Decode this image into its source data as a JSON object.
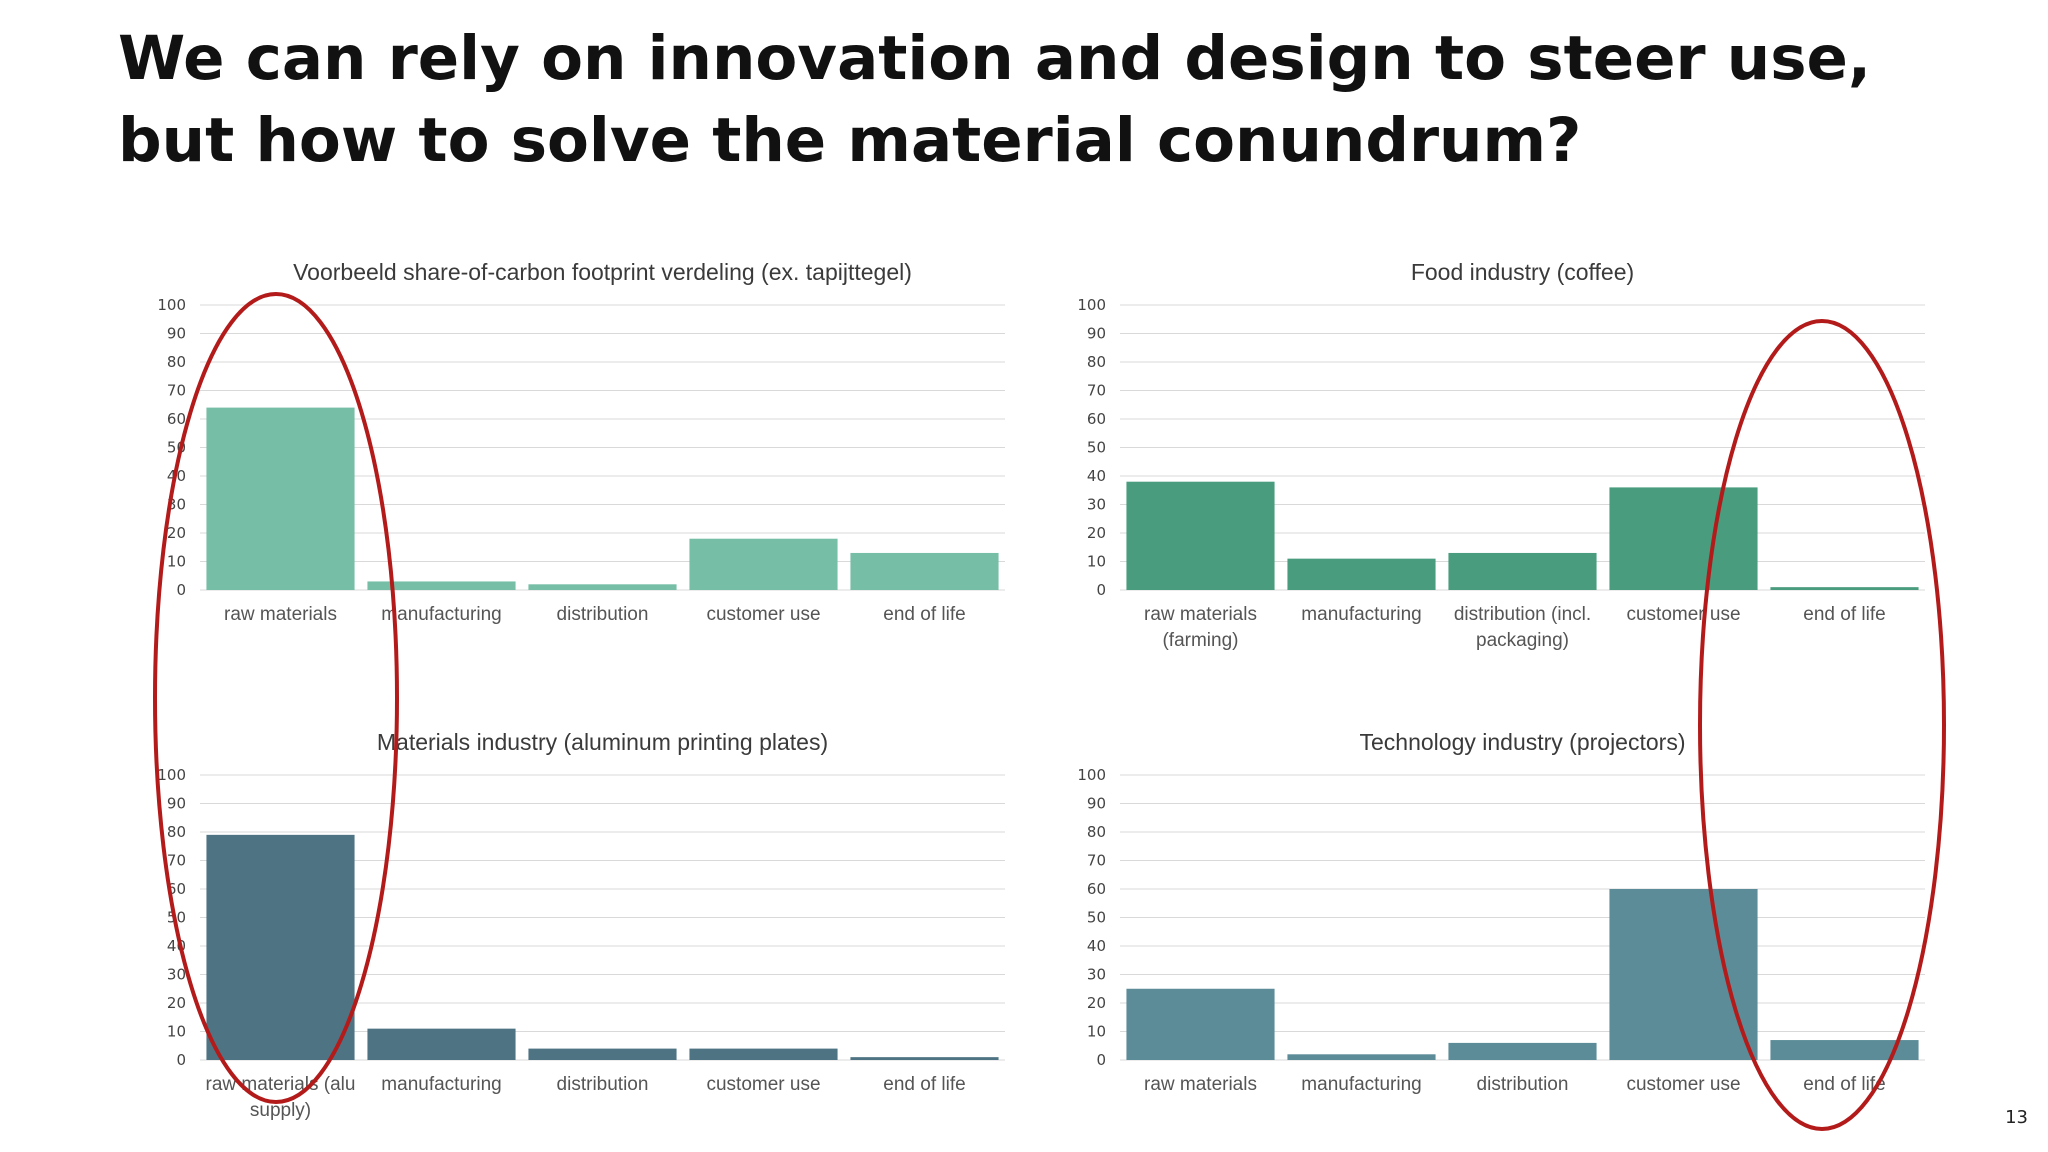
{
  "slide": {
    "title": "We can rely on innovation and design to steer use, but how to solve the material conundrum?",
    "page_number": "13"
  },
  "colors": {
    "chart_0_bar": "#76bea6",
    "chart_1_bar": "#4a9c7e",
    "chart_2_bar": "#4e7483",
    "chart_3_bar": "#5c8c98",
    "highlight": "#b31b1b"
  },
  "highlights": [
    {
      "label": "circle around raw materials bars",
      "target_category": "raw materials"
    },
    {
      "label": "circle around end of life bars",
      "target_category": "end of life"
    }
  ],
  "chart_data": [
    {
      "type": "bar",
      "title": "Voorbeeld share-of-carbon footprint verdeling (ex. tapijttegel)",
      "categories": [
        [
          "raw materials"
        ],
        [
          "manufacturing"
        ],
        [
          "distribution"
        ],
        [
          "customer use"
        ],
        [
          "end of life"
        ]
      ],
      "values": [
        64,
        3,
        2,
        18,
        13
      ],
      "ylim": [
        0,
        100
      ],
      "yticks": [
        0,
        10,
        20,
        30,
        40,
        50,
        60,
        70,
        80,
        90,
        100
      ],
      "grid": true,
      "color": "#76bea6"
    },
    {
      "type": "bar",
      "title": "Food industry (coffee)",
      "categories": [
        [
          "raw materials",
          "(farming)"
        ],
        [
          "manufacturing"
        ],
        [
          "distribution (incl.",
          "packaging)"
        ],
        [
          "customer use"
        ],
        [
          "end of life"
        ]
      ],
      "values": [
        38,
        11,
        13,
        36,
        1
      ],
      "ylim": [
        0,
        100
      ],
      "yticks": [
        0,
        10,
        20,
        30,
        40,
        50,
        60,
        70,
        80,
        90,
        100
      ],
      "grid": true,
      "color": "#4a9c7e"
    },
    {
      "type": "bar",
      "title": "Materials industry (aluminum printing plates)",
      "categories": [
        [
          "raw materials (alu",
          "supply)"
        ],
        [
          "manufacturing"
        ],
        [
          "distribution"
        ],
        [
          "customer use"
        ],
        [
          "end of life"
        ]
      ],
      "values": [
        79,
        11,
        4,
        4,
        1
      ],
      "ylim": [
        0,
        100
      ],
      "yticks": [
        0,
        10,
        20,
        30,
        40,
        50,
        60,
        70,
        80,
        90,
        100
      ],
      "grid": true,
      "color": "#4e7483"
    },
    {
      "type": "bar",
      "title": "Technology industry (projectors)",
      "categories": [
        [
          "raw materials"
        ],
        [
          "manufacturing"
        ],
        [
          "distribution"
        ],
        [
          "customer use"
        ],
        [
          "end of life"
        ]
      ],
      "values": [
        25,
        2,
        6,
        60,
        7
      ],
      "ylim": [
        0,
        100
      ],
      "yticks": [
        0,
        10,
        20,
        30,
        40,
        50,
        60,
        70,
        80,
        90,
        100
      ],
      "grid": true,
      "color": "#5c8c98"
    }
  ]
}
